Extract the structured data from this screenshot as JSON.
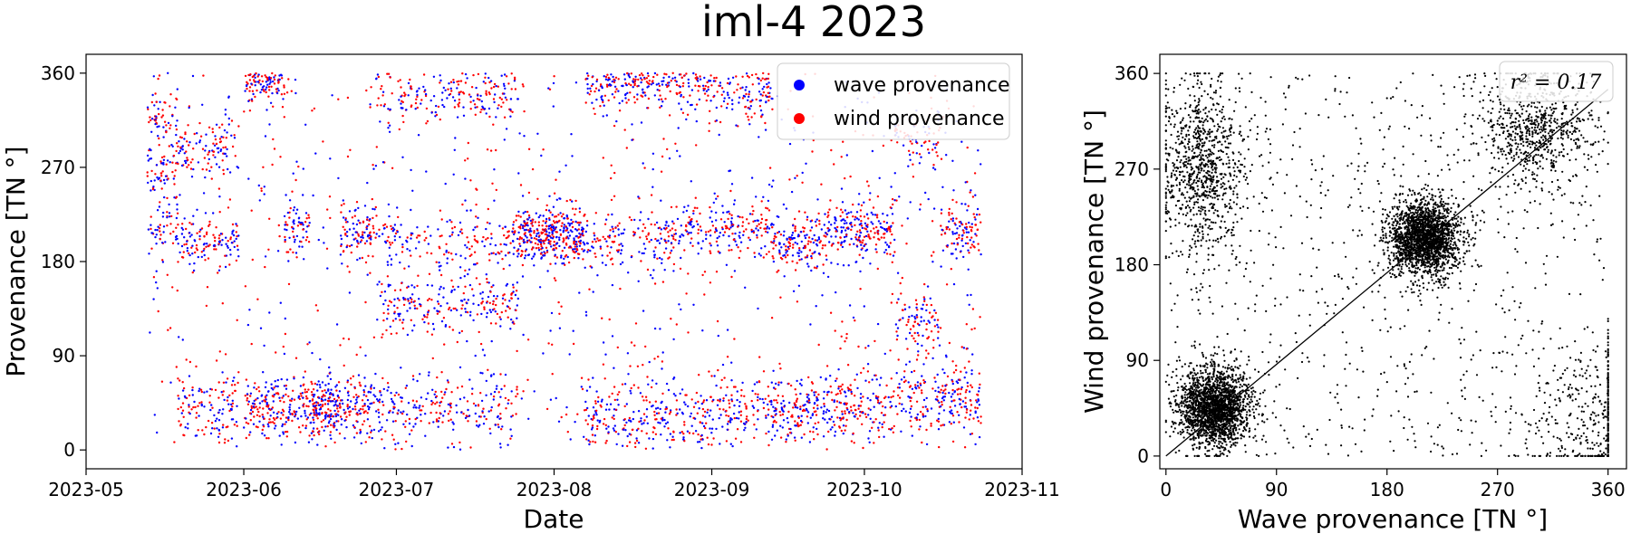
{
  "title": "iml-4 2023",
  "chart_data": [
    {
      "type": "scatter",
      "xlabel": "Date",
      "ylabel": "Provenance [TN °]",
      "x_ticks": [
        "2023-05",
        "2023-06",
        "2023-07",
        "2023-08",
        "2023-09",
        "2023-10",
        "2023-11"
      ],
      "xlim": [
        "2023-05-01",
        "2023-11-01"
      ],
      "y_ticks": [
        "0",
        "90",
        "180",
        "270",
        "360"
      ],
      "ylim": [
        -18,
        378
      ],
      "grid": false,
      "legend_position": "top-right",
      "series": [
        {
          "name": "wave provenance",
          "color": "#0000ff"
        },
        {
          "name": "wind provenance",
          "color": "#ff0000"
        }
      ],
      "data_window": {
        "start": "2023-05-13",
        "end": "2023-10-23"
      },
      "activity_segments": [
        {
          "start": "2023-05-13",
          "end": "2023-05-18",
          "clusters": [
            210,
            270,
            320
          ]
        },
        {
          "start": "2023-05-19",
          "end": "2023-05-30",
          "clusters": [
            200,
            40,
            290
          ]
        },
        {
          "start": "2023-06-01",
          "end": "2023-06-08",
          "clusters": [
            40,
            355
          ]
        },
        {
          "start": "2023-06-09",
          "end": "2023-06-13",
          "clusters": [
            210,
            40
          ]
        },
        {
          "start": "2023-06-14",
          "end": "2023-06-19",
          "clusters": [
            40
          ]
        },
        {
          "start": "2023-06-20",
          "end": "2023-06-26",
          "clusters": [
            210,
            40
          ]
        },
        {
          "start": "2023-06-27",
          "end": "2023-07-24",
          "clusters": [
            40,
            340,
            140,
            200
          ]
        },
        {
          "start": "2023-07-25",
          "end": "2023-08-06",
          "clusters": [
            205
          ]
        },
        {
          "start": "2023-08-07",
          "end": "2023-08-22",
          "clusters": [
            30,
            350,
            200
          ]
        },
        {
          "start": "2023-08-23",
          "end": "2023-08-31",
          "clusters": [
            30,
            210,
            350
          ]
        },
        {
          "start": "2023-09-01",
          "end": "2023-09-12",
          "clusters": [
            40,
            210,
            340
          ]
        },
        {
          "start": "2023-09-13",
          "end": "2023-09-22",
          "clusters": [
            40,
            200
          ]
        },
        {
          "start": "2023-09-23",
          "end": "2023-10-06",
          "clusters": [
            210,
            40
          ]
        },
        {
          "start": "2023-10-07",
          "end": "2023-10-15",
          "clusters": [
            50,
            120,
            300
          ]
        },
        {
          "start": "2023-10-16",
          "end": "2023-10-23",
          "clusters": [
            210,
            50
          ]
        }
      ]
    },
    {
      "type": "scatter",
      "xlabel": "Wave provenance [TN °]",
      "ylabel": "Wind provenance [TN °]",
      "x_ticks": [
        "0",
        "90",
        "180",
        "270",
        "360"
      ],
      "y_ticks": [
        "0",
        "90",
        "180",
        "270",
        "360"
      ],
      "xlim": [
        -5,
        375
      ],
      "ylim": [
        -12,
        378
      ],
      "grid": false,
      "color": "#000000",
      "clusters": [
        {
          "x": 40,
          "y": 45,
          "weight": 0.3
        },
        {
          "x": 210,
          "y": 205,
          "weight": 0.3
        },
        {
          "x": 30,
          "y": 270,
          "weight": 0.12
        },
        {
          "x": 300,
          "y": 310,
          "weight": 0.1
        },
        {
          "x": 350,
          "y": 40,
          "weight": 0.06
        }
      ],
      "annotation": "r² = 0.17",
      "fit_line": {
        "x": [
          0,
          360
        ],
        "y": [
          0,
          345
        ]
      }
    }
  ]
}
